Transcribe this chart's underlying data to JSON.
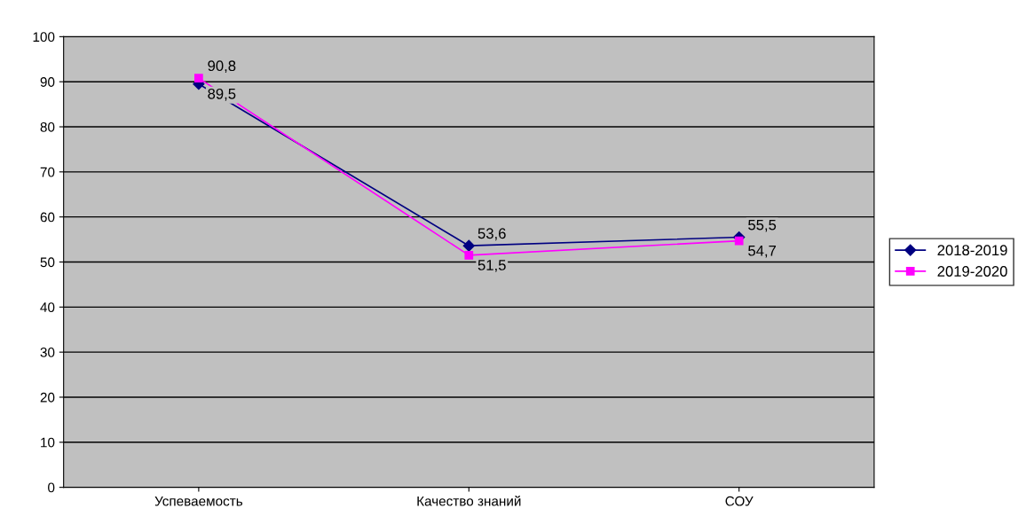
{
  "chart_data": {
    "type": "line",
    "categories": [
      "Успеваемость",
      "Качество знаний",
      "СОУ"
    ],
    "series": [
      {
        "name": "2018-2019",
        "color": "#000080",
        "marker": "diamond",
        "values": [
          89.5,
          53.6,
          55.5
        ],
        "value_labels": [
          "89,5",
          "53,6",
          "55,5"
        ]
      },
      {
        "name": "2019-2020",
        "color": "#ff00ff",
        "marker": "square",
        "values": [
          90.8,
          51.5,
          54.7
        ],
        "value_labels": [
          "90,8",
          "51,5",
          "54,7"
        ]
      }
    ],
    "ylim": [
      0,
      100
    ],
    "yticks": [
      0,
      10,
      20,
      30,
      40,
      50,
      60,
      70,
      80,
      90,
      100
    ],
    "grid": "y",
    "legend": "right",
    "line_style": "solid"
  }
}
